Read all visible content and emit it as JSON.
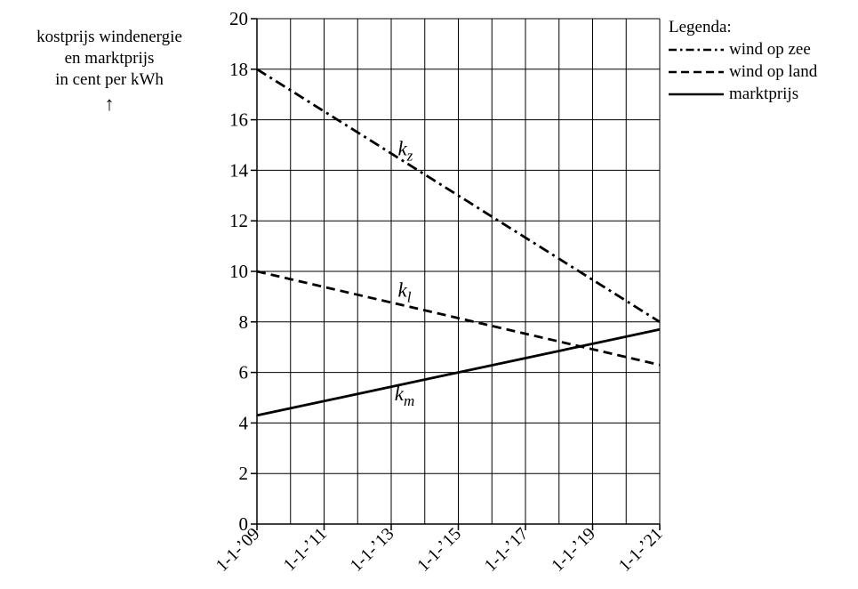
{
  "chart_data": {
    "type": "line",
    "ylabel_lines": [
      "kostprijs windenergie",
      "en marktprijs",
      "in cent per kWh"
    ],
    "ylabel_arrow": "↑",
    "ylim": [
      0,
      20
    ],
    "yticks": [
      0,
      2,
      4,
      6,
      8,
      10,
      12,
      14,
      16,
      18,
      20
    ],
    "xlim": [
      2009,
      2021
    ],
    "xticks": [
      {
        "x": 2009,
        "label": "1-1-’09"
      },
      {
        "x": 2011,
        "label": "1-1-’11"
      },
      {
        "x": 2013,
        "label": "1-1-’13"
      },
      {
        "x": 2015,
        "label": "1-1-’15"
      },
      {
        "x": 2017,
        "label": "1-1-’17"
      },
      {
        "x": 2019,
        "label": "1-1-’19"
      },
      {
        "x": 2021,
        "label": "1-1-’21"
      }
    ],
    "grid": true,
    "legend": {
      "title": "Legenda:",
      "placement": "top-right",
      "entries": [
        {
          "label": "wind op zee",
          "style": "dash-dot"
        },
        {
          "label": "wind op land",
          "style": "dashed"
        },
        {
          "label": "marktprijs",
          "style": "solid"
        }
      ]
    },
    "series": [
      {
        "key": "z",
        "style": "dash-dot",
        "x": [
          2009,
          2021
        ],
        "values": [
          18.0,
          8.0
        ],
        "label_main": "k",
        "label_sub": "z",
        "label_at": {
          "x": 2013.2,
          "y": 14.6
        }
      },
      {
        "key": "l",
        "style": "dashed",
        "x": [
          2009,
          2021
        ],
        "values": [
          10.0,
          6.3
        ],
        "label_main": "k",
        "label_sub": "l",
        "label_at": {
          "x": 2013.2,
          "y": 9.0
        }
      },
      {
        "key": "m",
        "style": "solid",
        "x": [
          2009,
          2021
        ],
        "values": [
          4.3,
          7.7
        ],
        "label_main": "k",
        "label_sub": "m",
        "label_at": {
          "x": 2013.1,
          "y": 4.9
        }
      }
    ]
  }
}
